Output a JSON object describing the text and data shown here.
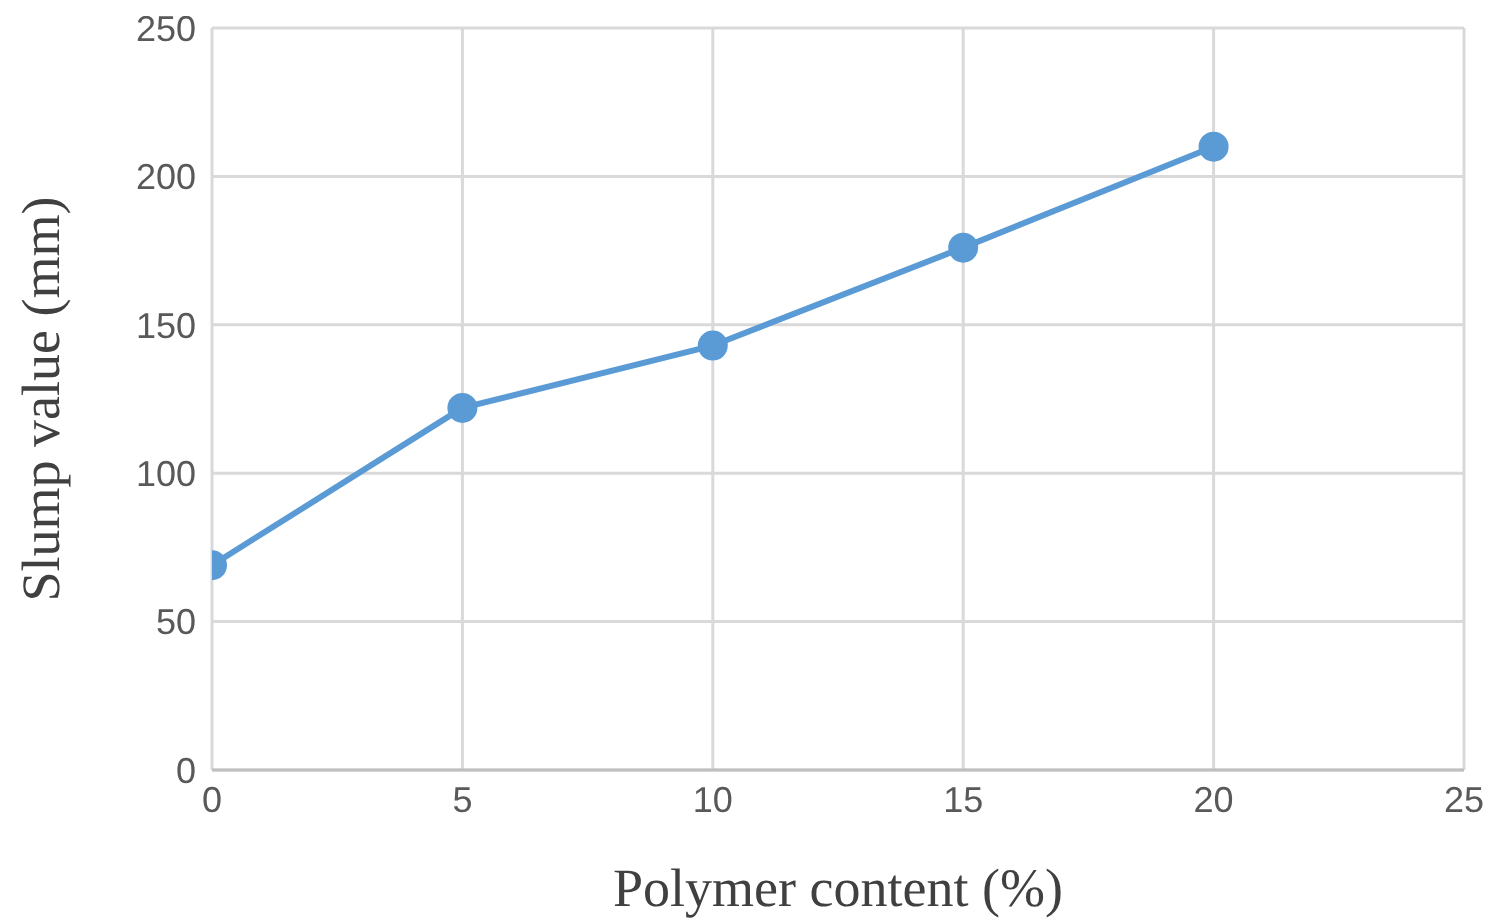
{
  "chart_data": {
    "type": "line",
    "xlabel": "Polymer content (%)",
    "ylabel": "Slump value (mm)",
    "x": [
      0,
      5,
      10,
      15,
      20
    ],
    "series": [
      {
        "color": "#5b9bd5",
        "values": [
          69,
          122,
          143,
          176,
          210
        ]
      }
    ],
    "xlim": [
      0,
      25
    ],
    "xticks": [
      0,
      5,
      10,
      15,
      20,
      25
    ],
    "ylim": [
      0,
      250
    ],
    "yticks": [
      0,
      50,
      100,
      150,
      200,
      250
    ],
    "grid": true,
    "marker": "circle",
    "line_style": "solid",
    "legend": false
  }
}
